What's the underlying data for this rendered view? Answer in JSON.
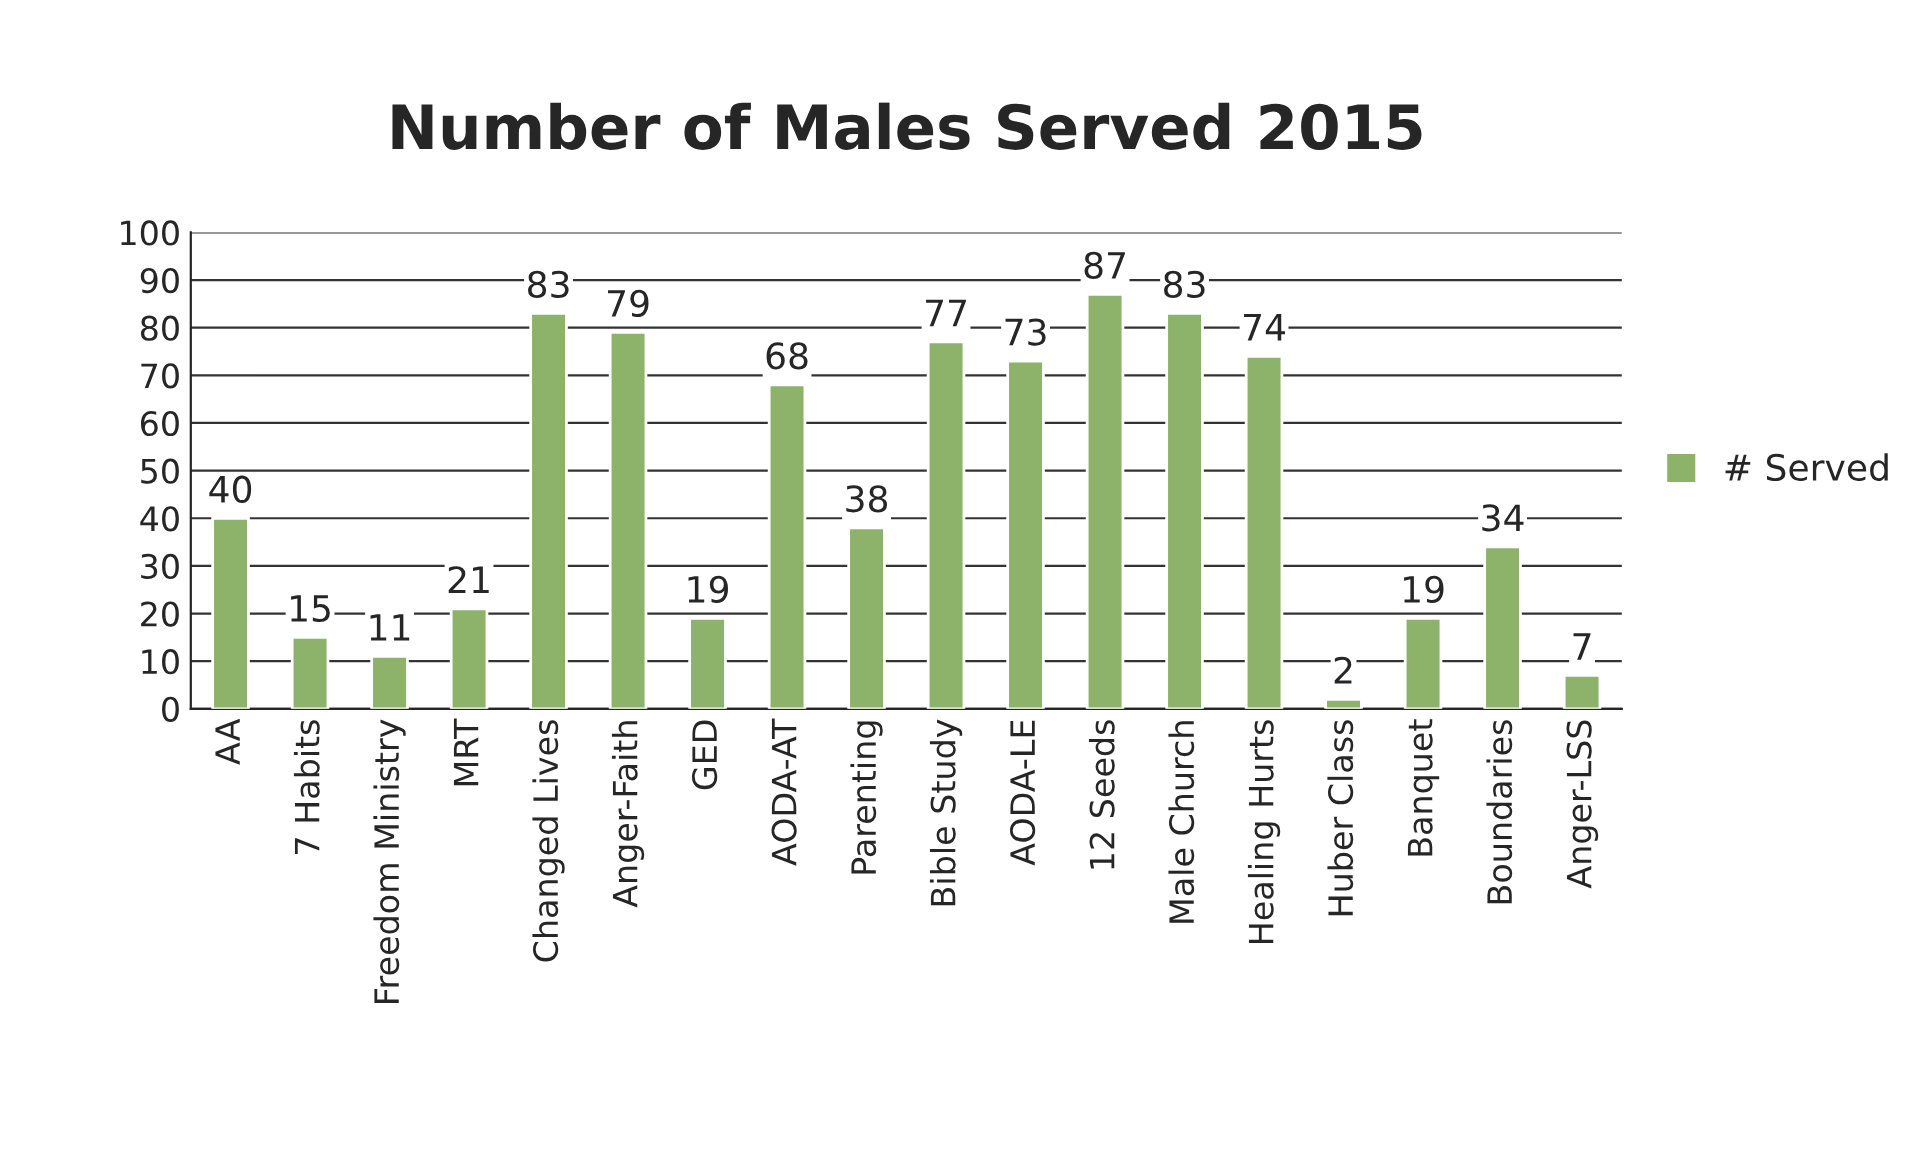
{
  "chart_data": {
    "type": "bar",
    "title": "Number of Males Served 2015",
    "categories": [
      "AA",
      "7 Habits",
      "Freedom Ministry",
      "MRT",
      "Changed Lives",
      "Anger-Faith",
      "GED",
      "AODA-AT",
      "Parenting",
      "Bible Study",
      "AODA-LE",
      "12 Seeds",
      "Male Church",
      "Healing Hurts",
      "Huber Class",
      "Banquet",
      "Boundaries",
      "Anger-LSS"
    ],
    "series": [
      {
        "name": "# Served",
        "color": "#8cb369",
        "values": [
          40,
          15,
          11,
          21,
          83,
          79,
          19,
          68,
          38,
          77,
          73,
          87,
          83,
          74,
          2,
          19,
          34,
          7
        ]
      }
    ],
    "ylim": [
      0,
      100
    ],
    "yticks": [
      0,
      10,
      20,
      30,
      40,
      50,
      60,
      70,
      80,
      90,
      100
    ],
    "grid": "y",
    "legend": "right",
    "data_labels": true
  }
}
